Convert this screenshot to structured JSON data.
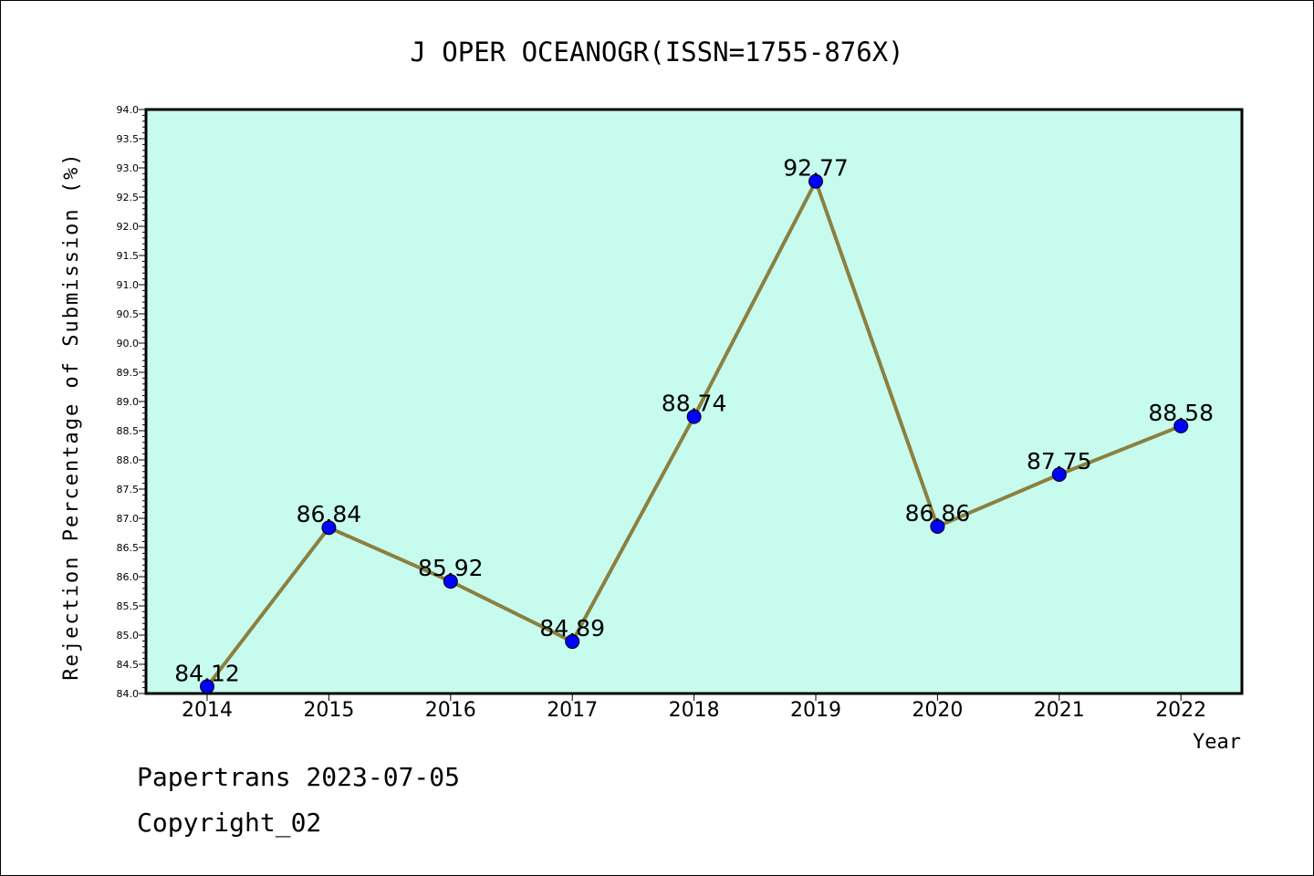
{
  "chart_data": {
    "type": "line",
    "title": "J OPER OCEANOGR(ISSN=1755-876X)",
    "xlabel": "Year",
    "ylabel": "Rejection Percentage of Submission (%)",
    "categories": [
      "2014",
      "2015",
      "2016",
      "2017",
      "2018",
      "2019",
      "2020",
      "2021",
      "2022"
    ],
    "values": [
      84.12,
      86.84,
      85.92,
      84.89,
      88.74,
      92.77,
      86.86,
      87.75,
      88.58
    ],
    "value_labels": [
      "84.12",
      "86.84",
      "85.92",
      "84.89",
      "88.74",
      "92.77",
      "86.86",
      "87.75",
      "88.58"
    ],
    "ylim": [
      84.0,
      94.0
    ],
    "ytick_step": 0.5,
    "ytick_labels": [
      "84.0",
      "84.5",
      "85.0",
      "85.5",
      "86.0",
      "86.5",
      "87.0",
      "87.5",
      "88.0",
      "88.5",
      "89.0",
      "89.5",
      "90.0",
      "90.5",
      "91.0",
      "91.5",
      "92.0",
      "92.5",
      "93.0",
      "93.5",
      "94.0"
    ],
    "grid": false,
    "colors": {
      "plot_background": "#c7fbee",
      "line": "#8b8040",
      "marker": "#0000ff"
    }
  },
  "footer": {
    "line1": "Papertrans 2023-07-05",
    "line2": "Copyright_02"
  }
}
